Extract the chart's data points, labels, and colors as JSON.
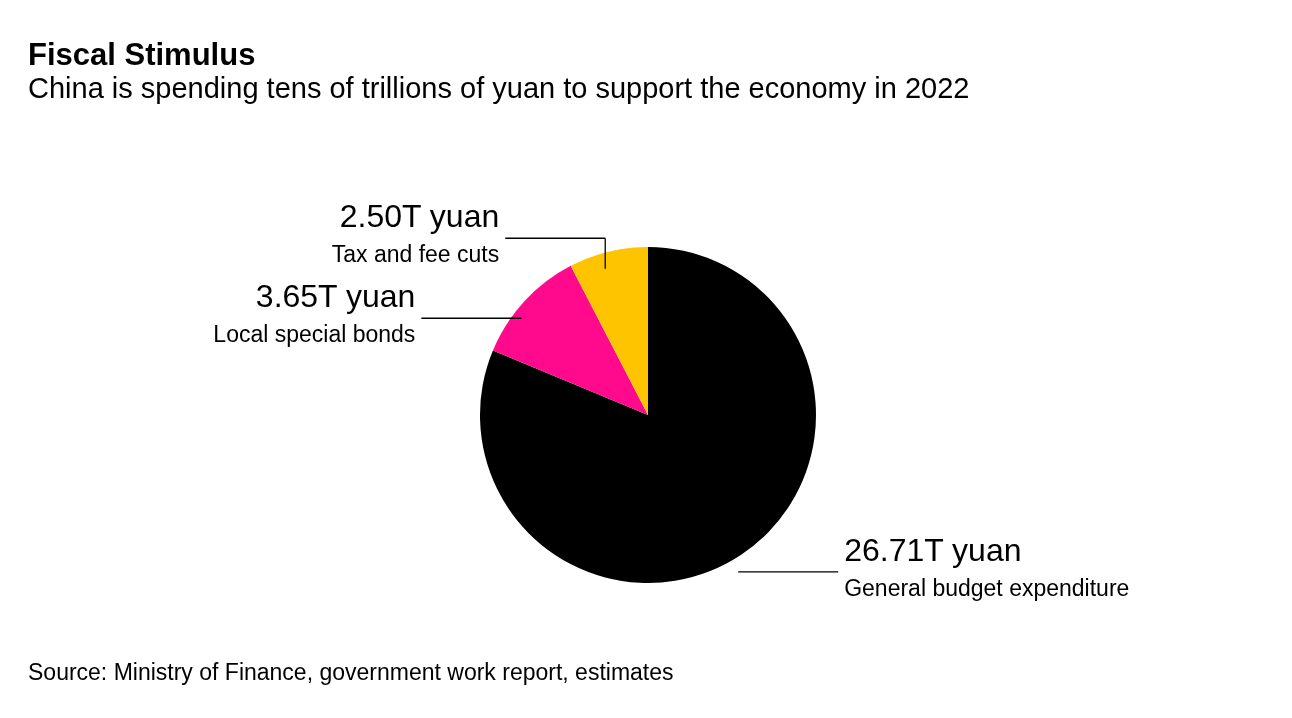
{
  "chart_data": {
    "type": "pie",
    "title": "Fiscal Stimulus",
    "subtitle": "China is spending tens of trillions of yuan to support the economy in 2022",
    "categories": [
      "General budget expenditure",
      "Local special bonds",
      "Tax and fee cuts"
    ],
    "values": [
      26.71,
      3.65,
      2.5
    ],
    "value_labels": [
      "26.71T yuan",
      "3.65T yuan",
      "2.50T yuan"
    ],
    "colors": [
      "#000000",
      "#ff0a8c",
      "#ffc400"
    ],
    "annotations": [
      "Source: Ministry of Finance, government work report, estimates"
    ]
  }
}
